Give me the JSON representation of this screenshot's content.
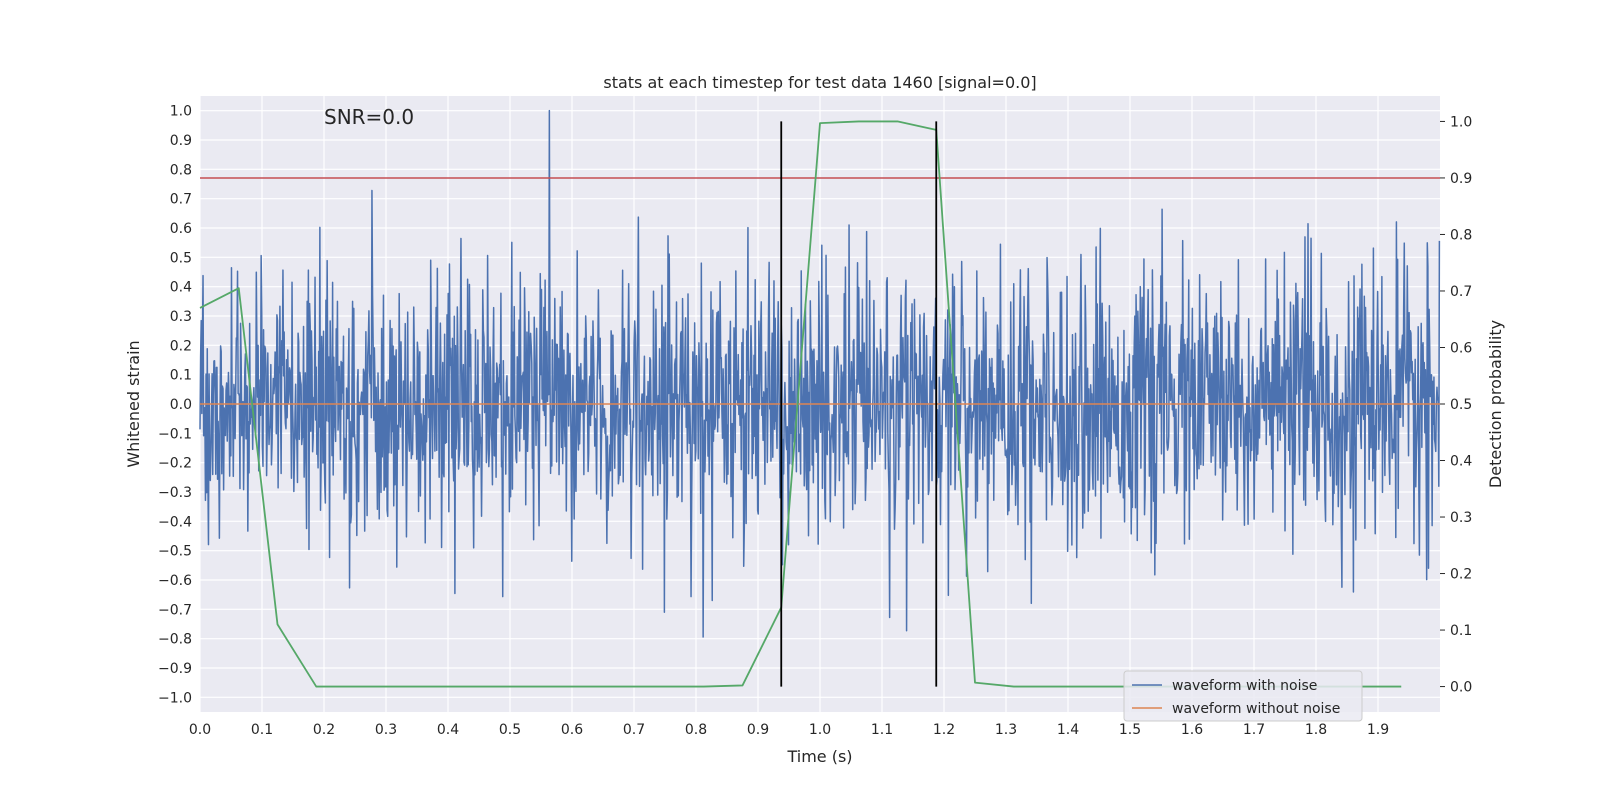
{
  "chart_data": {
    "type": "line",
    "title": "stats at each timestep for test data 1460 [signal=0.0]",
    "xlabel": "Time (s)",
    "ylabel": "Whitened strain",
    "ylabel_right": "Detection probability",
    "annotation": "SNR=0.0",
    "xlim": [
      0.0,
      2.0
    ],
    "ylim": [
      -1.05,
      1.05
    ],
    "ylim_right": [
      -0.045,
      1.045
    ],
    "x_ticks": [
      "0.0",
      "0.1",
      "0.2",
      "0.3",
      "0.4",
      "0.5",
      "0.6",
      "0.7",
      "0.8",
      "0.9",
      "1.0",
      "1.1",
      "1.2",
      "1.3",
      "1.4",
      "1.5",
      "1.6",
      "1.7",
      "1.8",
      "1.9"
    ],
    "y_ticks": [
      "1.0",
      "0.9",
      "0.8",
      "0.7",
      "0.6",
      "0.5",
      "0.4",
      "0.3",
      "0.2",
      "0.1",
      "0.0",
      "−0.1",
      "−0.2",
      "−0.3",
      "−0.4",
      "−0.5",
      "−0.6",
      "−0.7",
      "−0.8",
      "−0.9",
      "−1.0"
    ],
    "y_ticks_right": [
      "1.0",
      "0.9",
      "0.8",
      "0.7",
      "0.6",
      "0.5",
      "0.4",
      "0.3",
      "0.2",
      "0.1",
      "0.0"
    ],
    "grid": true,
    "legend_placement": "lower-right",
    "series": [
      {
        "name": "waveform with noise",
        "color": "#4c72b0",
        "axis": "left",
        "noise": {
          "samples": 2048,
          "peak": 1.0,
          "sigma": 0.22
        }
      },
      {
        "name": "waveform without noise",
        "color": "#dd8452",
        "axis": "left",
        "x": [
          0.0,
          2.0
        ],
        "y": [
          0.0,
          0.0
        ]
      },
      {
        "color": "#55a868",
        "axis": "right",
        "x": [
          0.0,
          0.0625,
          0.125,
          0.1875,
          0.25,
          0.3125,
          0.375,
          0.4375,
          0.5,
          0.5625,
          0.625,
          0.6875,
          0.75,
          0.8125,
          0.875,
          0.9375,
          1.0,
          1.0625,
          1.125,
          1.1875,
          1.25,
          1.3125,
          1.375,
          1.4375,
          1.5,
          1.5625,
          1.625,
          1.6875,
          1.75,
          1.8125,
          1.875,
          1.9375
        ],
        "y": [
          0.67,
          0.705,
          0.11,
          0.0,
          0.0,
          0.0,
          0.0,
          0.0,
          0.0,
          0.0,
          0.0,
          0.0,
          0.0,
          0.0,
          0.002,
          0.14,
          0.997,
          1.0,
          1.0,
          0.985,
          0.007,
          0.0,
          0.0,
          0.0,
          0.0,
          0.0,
          0.0,
          0.0,
          0.0,
          0.0,
          0.0,
          0.0
        ]
      }
    ],
    "threshold": {
      "value": 0.9,
      "axis": "right",
      "color": "#c44e52"
    },
    "markers": {
      "x": [
        0.9375,
        1.1875
      ],
      "y_range": [
        0.0,
        1.0
      ],
      "axis": "right",
      "color": "#000000"
    }
  }
}
